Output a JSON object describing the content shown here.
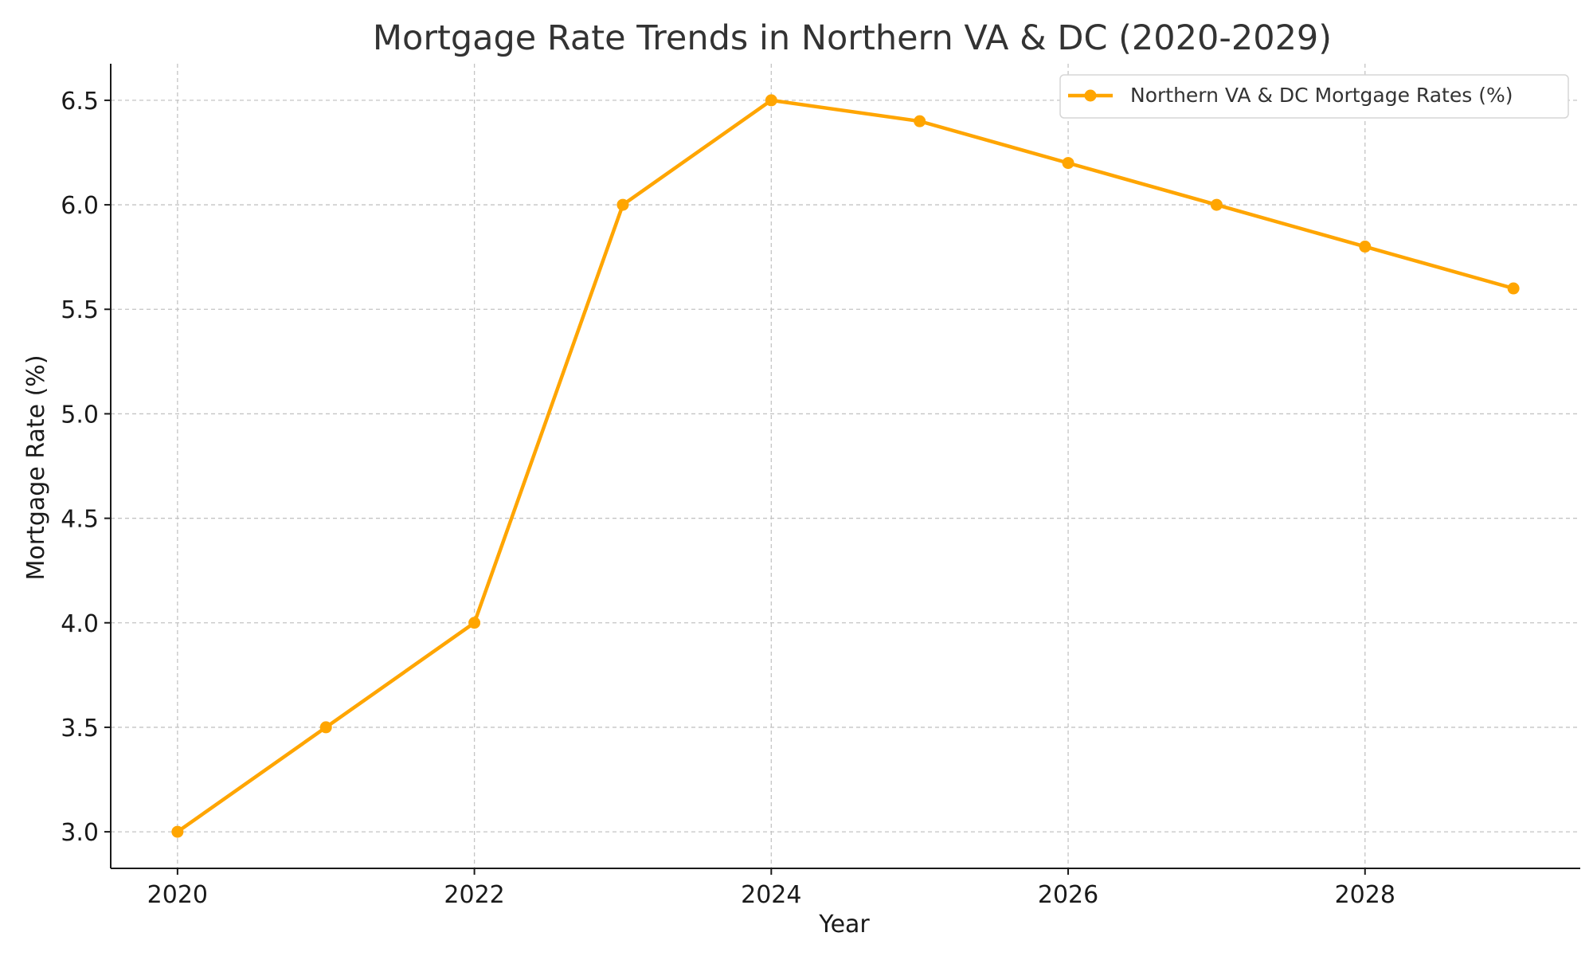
{
  "colors": {
    "series": "#FFA500",
    "grid": "#c4c4c4",
    "axis": "#1a1a1a",
    "title": "#333333"
  },
  "chart_data": {
    "type": "line",
    "title": "Mortgage Rate Trends in Northern VA & DC (2020-2029)",
    "xlabel": "Year",
    "ylabel": "Mortgage Rate (%)",
    "x": [
      2020,
      2021,
      2022,
      2023,
      2024,
      2025,
      2026,
      2027,
      2028,
      2029
    ],
    "series": [
      {
        "name": "Northern VA & DC Mortgage Rates (%)",
        "values": [
          3.0,
          3.5,
          4.0,
          6.0,
          6.5,
          6.4,
          6.2,
          6.0,
          5.8,
          5.6
        ],
        "color": "#FFA500",
        "marker": "circle"
      }
    ],
    "xlim": [
      2019.55,
      2029.45
    ],
    "ylim": [
      2.825,
      6.675
    ],
    "xticks": [
      "2020",
      "2022",
      "2024",
      "2026",
      "2028"
    ],
    "yticks": [
      "3.0",
      "3.5",
      "4.0",
      "4.5",
      "5.0",
      "5.5",
      "6.0",
      "6.5"
    ],
    "grid": true,
    "legend_position": "top-right"
  }
}
